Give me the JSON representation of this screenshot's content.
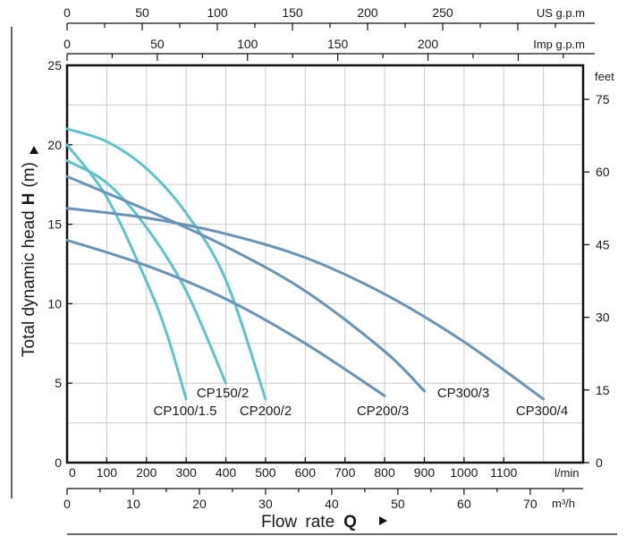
{
  "chart_data": {
    "type": "line",
    "xlabel": "Flow rate",
    "xlabel_symbol": "Q",
    "ylabel": "Total dynamic head",
    "ylabel_symbol": "H",
    "ylabel_unit": "(m)",
    "xlim": [
      0,
      1300
    ],
    "ylim": [
      0,
      25
    ],
    "grid": true,
    "x_unit_primary": "l/min",
    "x_ticks_primary": [
      "0",
      "100",
      "200",
      "300",
      "400",
      "500",
      "600",
      "700",
      "800",
      "900",
      "1000",
      "1100"
    ],
    "x_unit_m3h": "m³/h",
    "x_ticks_m3h": [
      "0",
      "10",
      "20",
      "30",
      "40",
      "50",
      "60",
      "70"
    ],
    "x_unit_us": "US g.p.m",
    "x_ticks_us": [
      "0",
      "50",
      "100",
      "150",
      "200",
      "250"
    ],
    "x_unit_imp": "Imp g.p.m",
    "x_ticks_imp": [
      "0",
      "50",
      "100",
      "150",
      "200"
    ],
    "y_ticks_left": [
      "0",
      "5",
      "10",
      "15",
      "20",
      "25"
    ],
    "y_unit_right": "feet",
    "y_ticks_right": [
      "0",
      "15",
      "30",
      "45",
      "60",
      "75"
    ],
    "series": [
      {
        "name": "CP100/1.5",
        "color": "#5ec4c9",
        "x": [
          0,
          100,
          200,
          250,
          300
        ],
        "y": [
          20,
          16.7,
          11.4,
          8.2,
          4.0
        ]
      },
      {
        "name": "CP150/2",
        "color": "#5ec4c9",
        "x": [
          0,
          100,
          200,
          300,
          400
        ],
        "y": [
          19,
          17.6,
          14.8,
          10.8,
          5.0
        ]
      },
      {
        "name": "CP200/2",
        "color": "#5ec4c9",
        "x": [
          0,
          100,
          200,
          300,
          400,
          500
        ],
        "y": [
          21,
          20.2,
          18.5,
          15.7,
          11.5,
          4.0
        ]
      },
      {
        "name": "CP200/3",
        "color": "#6a93b8",
        "x": [
          0,
          200,
          400,
          600,
          800
        ],
        "y": [
          14,
          12.4,
          10.3,
          7.5,
          4.2
        ]
      },
      {
        "name": "CP300/3",
        "color": "#6a93b8",
        "x": [
          0,
          200,
          400,
          600,
          800,
          900
        ],
        "y": [
          18,
          15.9,
          13.6,
          10.8,
          7.0,
          4.5
        ]
      },
      {
        "name": "CP300/4",
        "color": "#6a93b8",
        "x": [
          0,
          200,
          400,
          600,
          800,
          1000,
          1200
        ],
        "y": [
          16,
          15.4,
          14.4,
          12.9,
          10.6,
          7.6,
          4.0
        ]
      }
    ]
  }
}
